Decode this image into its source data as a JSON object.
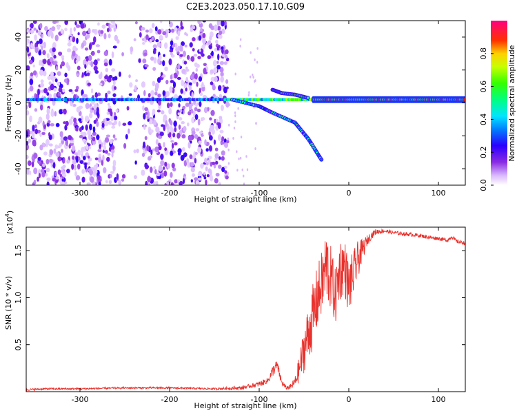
{
  "title": "C2E3.2023.050.17.10.G09",
  "colors": {
    "snr_line": "#e8312c",
    "background": "#ffffff",
    "axis": "#000000"
  },
  "chart_data": [
    {
      "type": "heatmap",
      "xlabel": "Height of straight line (km)",
      "ylabel": "Frequency (Hz)",
      "xlim": [
        -360,
        130
      ],
      "ylim": [
        -50,
        50
      ],
      "x_ticks": [
        -300,
        -200,
        -100,
        0,
        100
      ],
      "x_tick_labels": [
        "-300",
        "-200",
        "-100",
        "0",
        "100"
      ],
      "y_ticks": [
        -40,
        -20,
        0,
        20,
        40
      ],
      "y_tick_labels": [
        "-40",
        "-20",
        "0",
        "20",
        "40"
      ],
      "colorbar": {
        "label": "Normalized spectral amplitude",
        "range": [
          0,
          1
        ],
        "ticks": [
          0.0,
          0.2,
          0.4,
          0.6,
          0.8
        ],
        "tick_labels": [
          "0.0",
          "0.2",
          "0.4",
          "0.6",
          "0.8"
        ],
        "colormap": "rainbow (white-purple-blue-cyan-green-yellow-red-magenta)"
      },
      "features": {
        "noise_region_x": [
          -360,
          -135
        ],
        "noise_gap_x": [
          -260,
          -230
        ],
        "main_ridge_freq_hz": 2,
        "branch_upper": [
          [
            -85,
            8
          ],
          [
            -75,
            6
          ],
          [
            -60,
            5
          ],
          [
            -45,
            3
          ]
        ],
        "branch_lower": [
          [
            -130,
            2
          ],
          [
            -100,
            -2
          ],
          [
            -85,
            -6
          ],
          [
            -60,
            -12
          ],
          [
            -45,
            -22
          ],
          [
            -30,
            -35
          ]
        ],
        "strong_tone_x": [
          -40,
          130
        ]
      }
    },
    {
      "type": "line",
      "xlabel": "Height of straight line (km)",
      "ylabel": "SNR (10 * v/v)",
      "y_multiplier_label": "(x10",
      "y_multiplier_exponent": "4",
      "xlim": [
        -360,
        130
      ],
      "ylim": [
        0,
        1.75
      ],
      "x_ticks": [
        -300,
        -200,
        -100,
        0,
        100
      ],
      "x_tick_labels": [
        "-300",
        "-200",
        "-100",
        "0",
        "100"
      ],
      "y_ticks": [
        0.5,
        1.0,
        1.5
      ],
      "y_tick_labels": [
        "0.5",
        "1.0",
        "1.5"
      ],
      "series": [
        {
          "x": [
            -360,
            -340,
            -300,
            -250,
            -200,
            -150,
            -120,
            -110,
            -100,
            -90,
            -85,
            -80,
            -75,
            -70,
            -65,
            -60,
            -55,
            -50,
            -45,
            -40,
            -35,
            -30,
            -25,
            -20,
            -15,
            -10,
            -5,
            0,
            5,
            10,
            15,
            20,
            25,
            30,
            40,
            50,
            60,
            70,
            80,
            90,
            100,
            110,
            115,
            120,
            130
          ],
          "y": [
            0.02,
            0.03,
            0.03,
            0.04,
            0.04,
            0.03,
            0.04,
            0.06,
            0.08,
            0.12,
            0.22,
            0.28,
            0.1,
            0.04,
            0.05,
            0.1,
            0.25,
            0.45,
            0.62,
            0.8,
            1.0,
            1.15,
            1.35,
            1.2,
            1.0,
            1.3,
            1.35,
            1.1,
            1.25,
            1.4,
            1.5,
            1.6,
            1.66,
            1.7,
            1.71,
            1.69,
            1.68,
            1.67,
            1.66,
            1.64,
            1.63,
            1.61,
            1.65,
            1.6,
            1.58
          ],
          "noise_amplitude": [
            0.01,
            0.01,
            0.01,
            0.01,
            0.01,
            0.01,
            0.02,
            0.02,
            0.03,
            0.03,
            0.06,
            0.06,
            0.04,
            0.02,
            0.03,
            0.06,
            0.15,
            0.25,
            0.3,
            0.35,
            0.35,
            0.35,
            0.4,
            0.35,
            0.3,
            0.35,
            0.3,
            0.3,
            0.25,
            0.2,
            0.12,
            0.06,
            0.04,
            0.03,
            0.02,
            0.02,
            0.02,
            0.02,
            0.02,
            0.02,
            0.02,
            0.02,
            0.02,
            0.02,
            0.02
          ]
        }
      ]
    }
  ]
}
